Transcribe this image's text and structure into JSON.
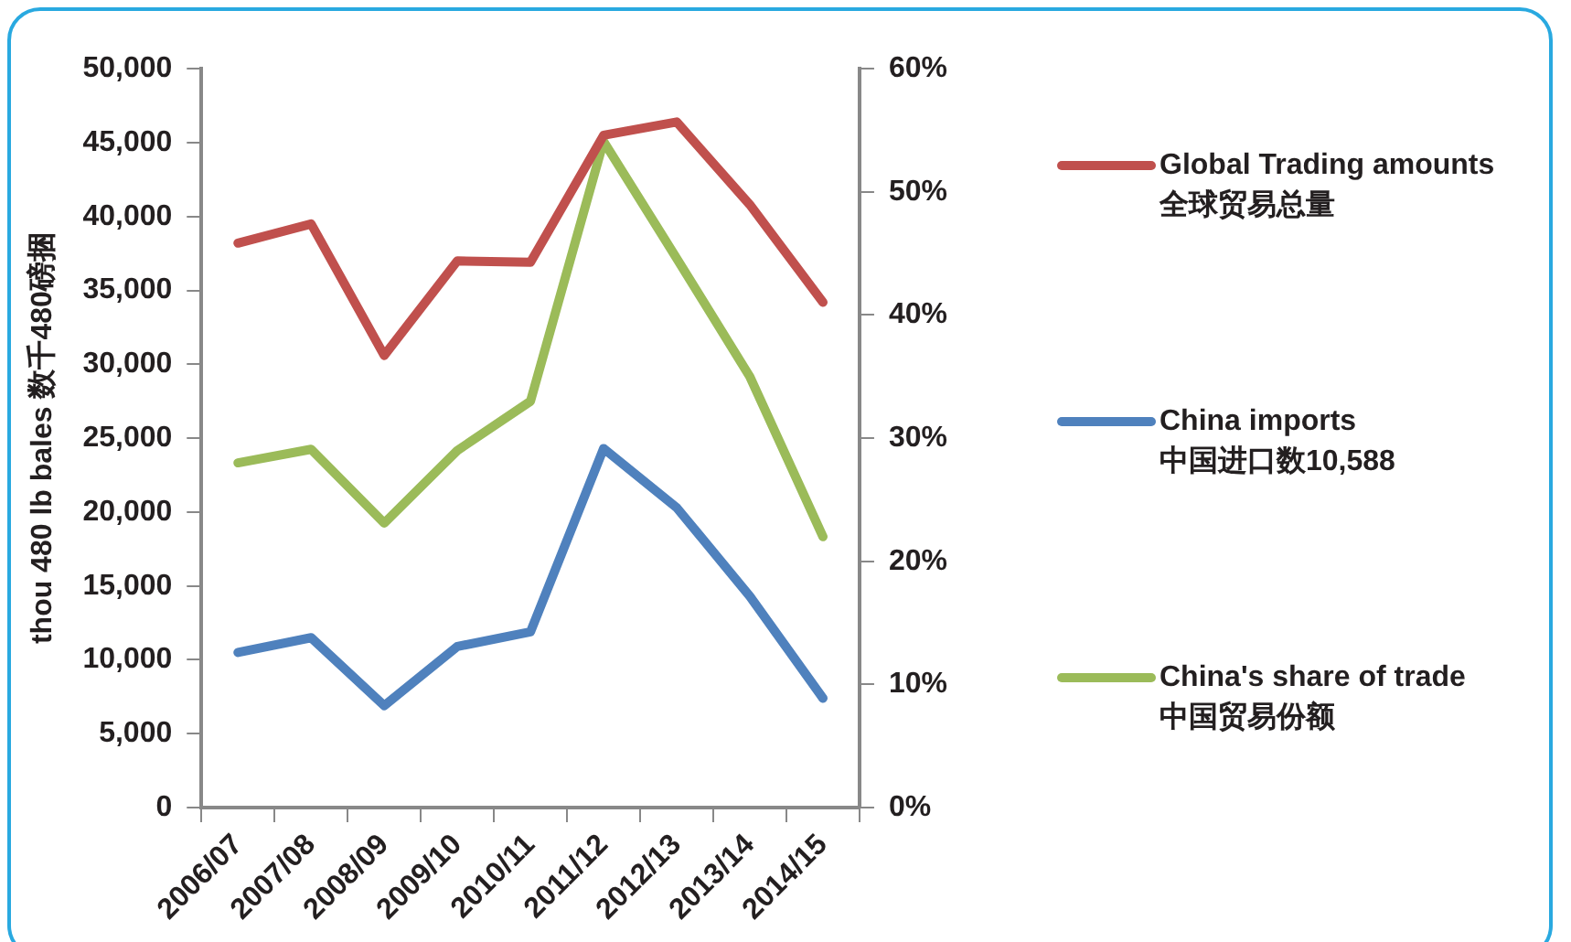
{
  "chart_data": {
    "type": "line",
    "ylabel": "thou 480 lb bales 数千480磅捆",
    "categories": [
      "2006/07",
      "2007/08",
      "2008/09",
      "2009/10",
      "2010/11",
      "2011/12",
      "2012/13",
      "2013/14",
      "2014/15"
    ],
    "series": [
      {
        "name": "Global Trading amounts\n全球贸易总量",
        "color": "#c0504d",
        "values": [
          38200,
          39500,
          30600,
          37000,
          36900,
          45500,
          46400,
          40800,
          34200
        ]
      },
      {
        "name": "China imports\n中国进口数10,588",
        "color": "#4f81bd",
        "values": [
          10500,
          11500,
          6900,
          10900,
          11900,
          24300,
          20300,
          14300,
          7400
        ]
      },
      {
        "name": "China's share of trade\n中国贸易份额",
        "color": "#9bbb59",
        "axis": "y2",
        "values": [
          28,
          29.1,
          23.1,
          29,
          33,
          54.1,
          44.6,
          35,
          22
        ]
      }
    ],
    "ylim": [
      0,
      50000
    ],
    "yticks": [
      0,
      {
        "value": 5000,
        "label": "5,000"
      },
      {
        "value": 10000,
        "label": "10,000"
      },
      {
        "value": 15000,
        "label": "15,000"
      },
      {
        "value": 20000,
        "label": "20,000"
      },
      {
        "value": 25000,
        "label": "25,000"
      },
      {
        "value": 30000,
        "label": "30,000"
      },
      {
        "value": 35000,
        "label": "35,000"
      },
      {
        "value": 40000,
        "label": "40,000"
      },
      {
        "value": 45000,
        "label": "45,000"
      },
      {
        "value": 50000,
        "label": "50,000"
      }
    ],
    "y2lim": [
      0,
      60
    ],
    "y2ticks": [
      {
        "value": 0,
        "label": "0%"
      },
      {
        "value": 10,
        "label": "10%"
      },
      {
        "value": 20,
        "label": "20%"
      },
      {
        "value": 30,
        "label": "30%"
      },
      {
        "value": 40,
        "label": "40%"
      },
      {
        "value": 50,
        "label": "50%"
      },
      {
        "value": 60,
        "label": "60%"
      }
    ],
    "legend": "right",
    "marker": "none"
  }
}
